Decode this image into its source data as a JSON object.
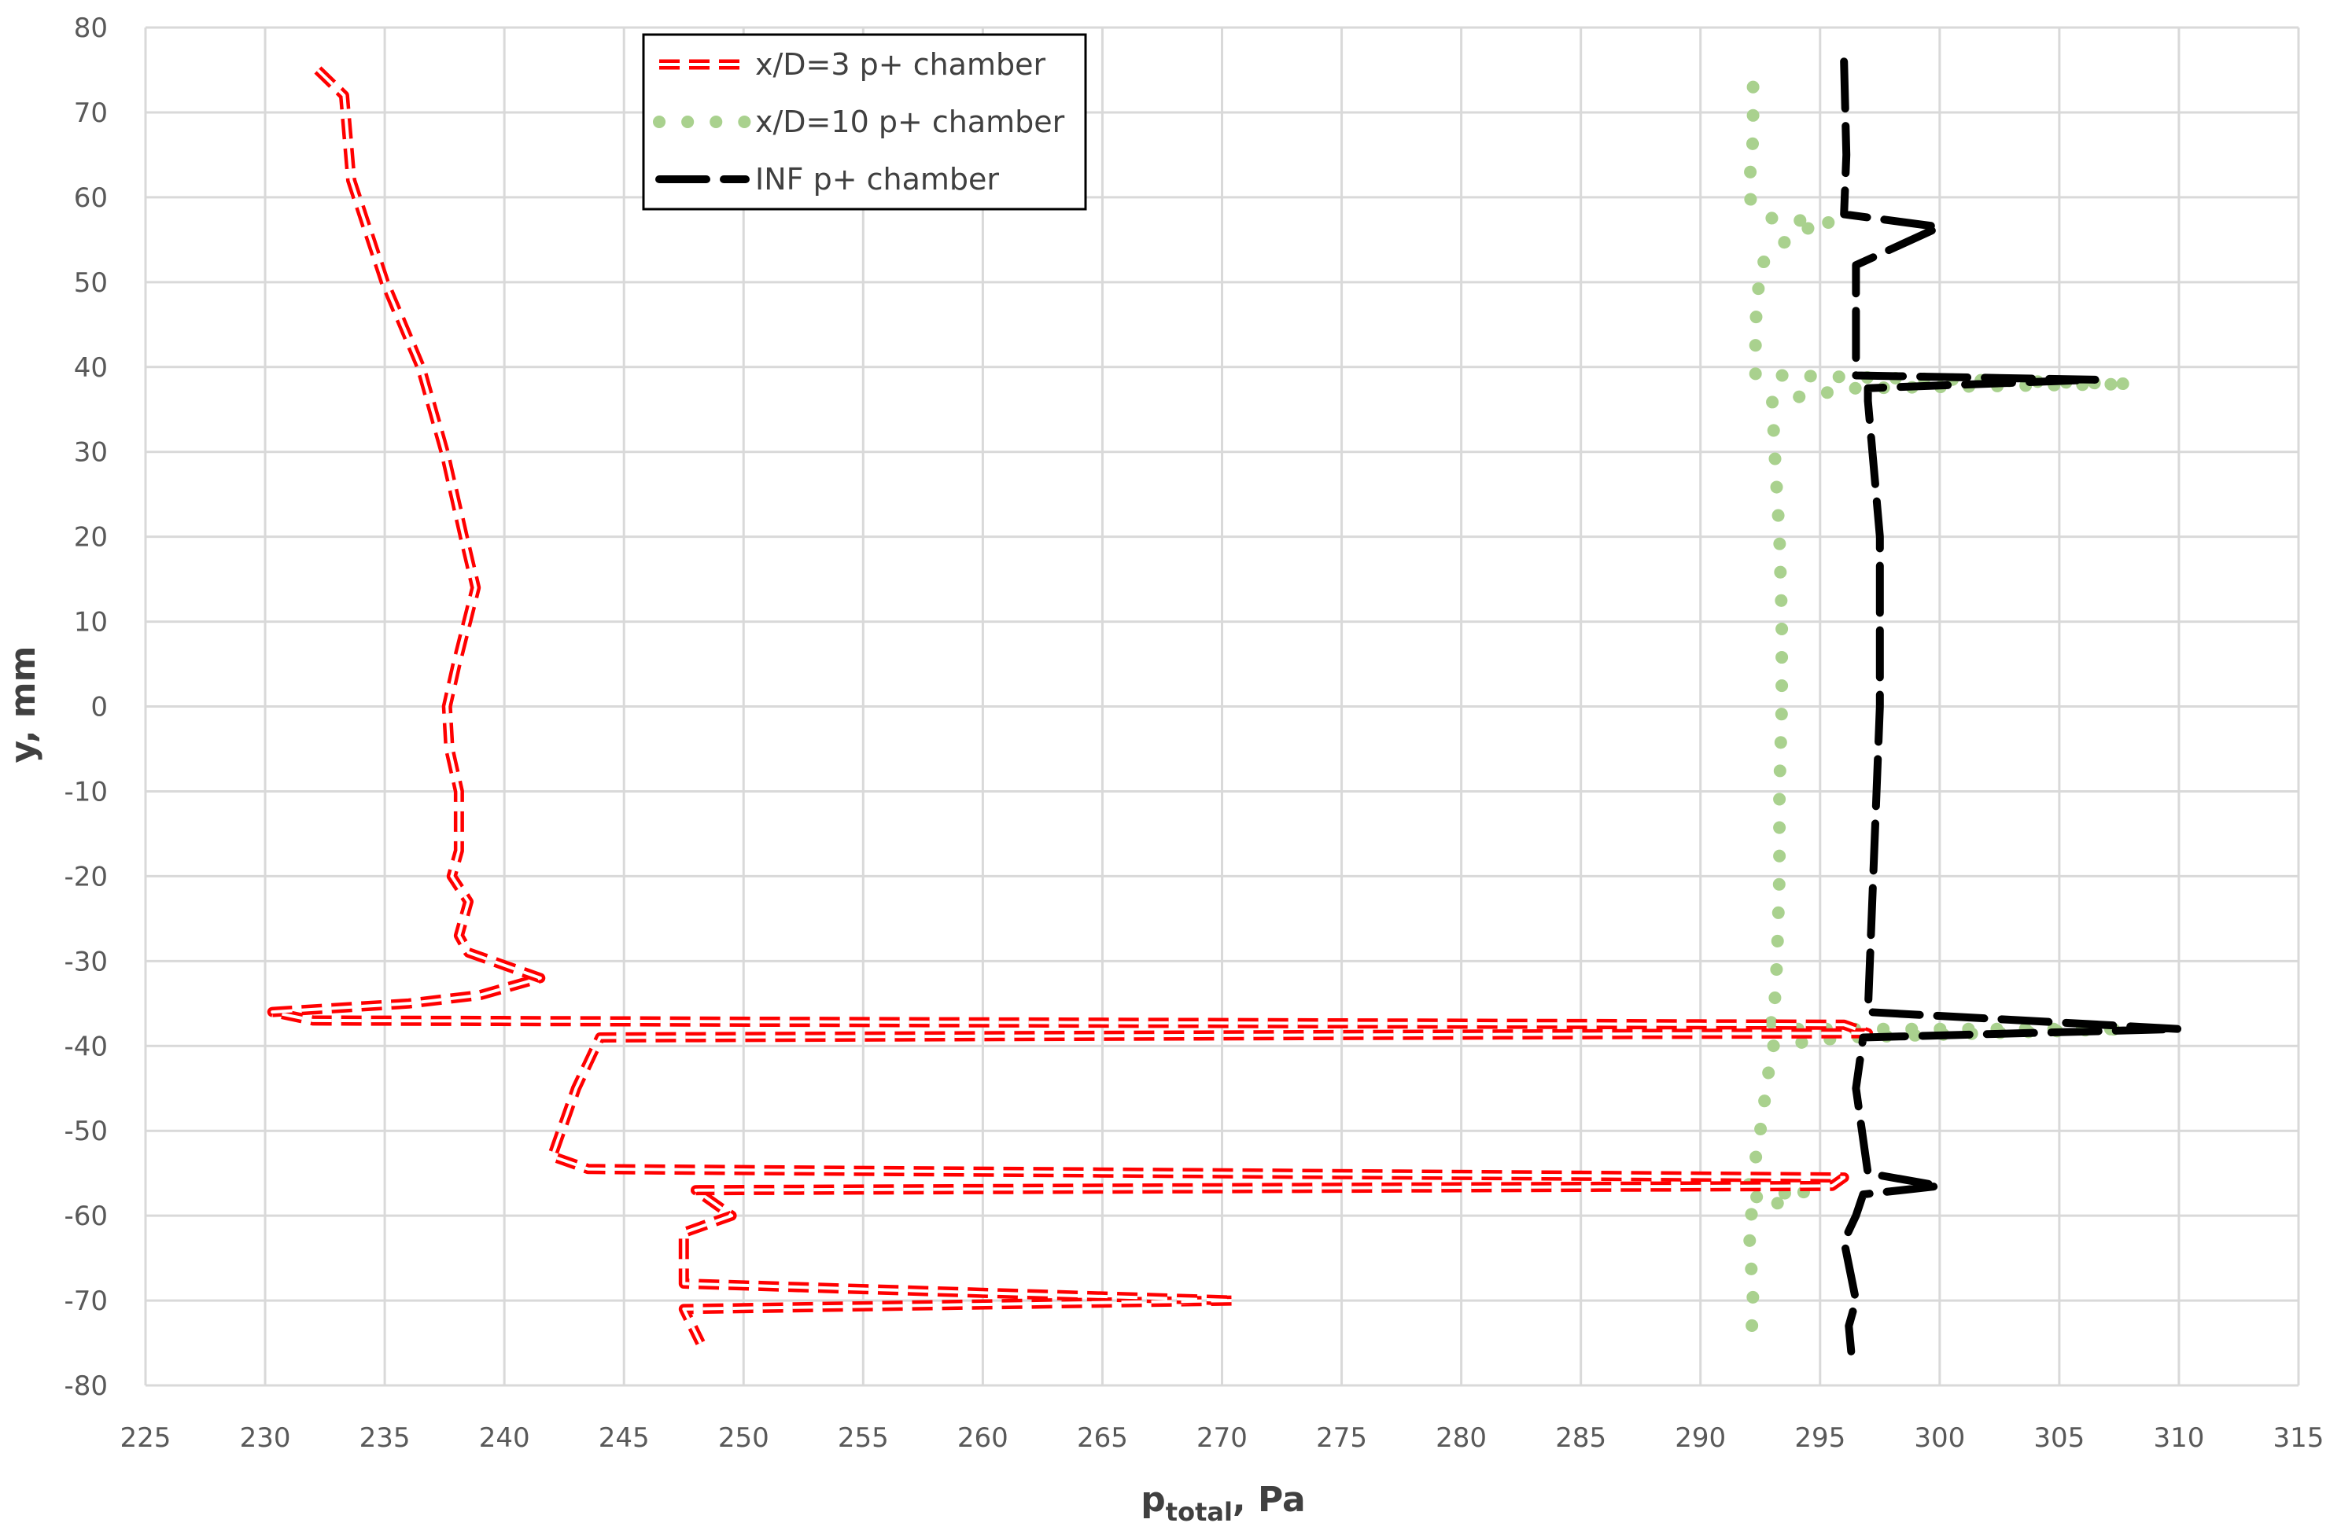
{
  "chart_data": {
    "type": "line",
    "xlabel_main": "p",
    "xlabel_sub": "total",
    "xlabel_rest": ", Pa",
    "ylabel": "y, mm",
    "xlim": [
      225,
      315
    ],
    "ylim": [
      -80,
      80
    ],
    "xticks": [
      "225",
      "230",
      "235",
      "240",
      "245",
      "250",
      "255",
      "260",
      "265",
      "270",
      "275",
      "280",
      "285",
      "290",
      "295",
      "300",
      "305",
      "310",
      "315"
    ],
    "yticks": [
      "-80",
      "-70",
      "-60",
      "-50",
      "-40",
      "-30",
      "-20",
      "-10",
      "0",
      "10",
      "20",
      "30",
      "40",
      "50",
      "60",
      "70",
      "80"
    ],
    "grid": true,
    "legend_position": "top-center",
    "series": [
      {
        "name": "x/D=3 p+ chamber",
        "color": "#ff0000",
        "style": "dashed-outline",
        "x": [
          232.2,
          233.3,
          233.6,
          235.0,
          236.5,
          237.5,
          238.3,
          238.8,
          238.0,
          237.6,
          237.7,
          238.1,
          238.1,
          237.8,
          238.5,
          238.1,
          238.5,
          239.5,
          241.5,
          239.0,
          236.0,
          230.3,
          232.0,
          296.0,
          297.0,
          244.0,
          243.0,
          242.0,
          243.5,
          296.0,
          295.5,
          248.0,
          249.5,
          247.5,
          247.5,
          270.5,
          247.5,
          248.2
        ],
        "y": [
          75,
          72,
          62,
          50,
          40,
          30,
          20,
          14,
          5,
          0,
          -5,
          -10,
          -17,
          -20,
          -23,
          -27,
          -29,
          -30,
          -32,
          -34,
          -35,
          -36,
          -37,
          -37.5,
          -38.5,
          -39,
          -45,
          -53,
          -54.5,
          -55.5,
          -56.5,
          -57,
          -60,
          -62,
          -68,
          -70,
          -71,
          -75
        ]
      },
      {
        "name": "x/D=10 p+ chamber",
        "color": "#a9d18e",
        "style": "dotted",
        "x": [
          292.2,
          292.2,
          292.0,
          293.0,
          295.5,
          294.0,
          292.5,
          292.3,
          292.3,
          292.3,
          293.5,
          308.0,
          296.5,
          293.0,
          293.1,
          293.3,
          293.4,
          293.4,
          293.3,
          293.3,
          293.2,
          293.1,
          292.8,
          293.5,
          307.8,
          296.0,
          293.0,
          292.5,
          292.2,
          291.8,
          294.5,
          292.0,
          292.2,
          292.1
        ],
        "y": [
          73,
          67,
          60,
          57.5,
          57,
          56,
          52,
          45,
          40,
          39,
          39,
          38,
          37.5,
          36,
          30,
          20,
          10,
          0,
          -10,
          -20,
          -30,
          -35,
          -37,
          -38,
          -38,
          -39,
          -40,
          -50,
          -55,
          -58,
          -57,
          -60,
          -70,
          -76
        ]
      },
      {
        "name": "INF p+ chamber",
        "color": "#000000",
        "style": "long-dash",
        "x": [
          296.0,
          296.1,
          296.0,
          300.0,
          296.5,
          296.5,
          296.5,
          306.5,
          297.0,
          297.0,
          297.5,
          297.5,
          297.0,
          310.0,
          296.8,
          296.5,
          297.0,
          300.0,
          296.8,
          296.5,
          296.0,
          296.5,
          296.2,
          296.3
        ],
        "y": [
          76,
          65,
          58,
          56.5,
          52,
          42,
          39,
          38.5,
          37.5,
          36,
          20,
          0,
          -36,
          -38,
          -39,
          -45,
          -55,
          -56.5,
          -57.5,
          -60,
          -63,
          -70,
          -73,
          -76
        ]
      }
    ]
  }
}
